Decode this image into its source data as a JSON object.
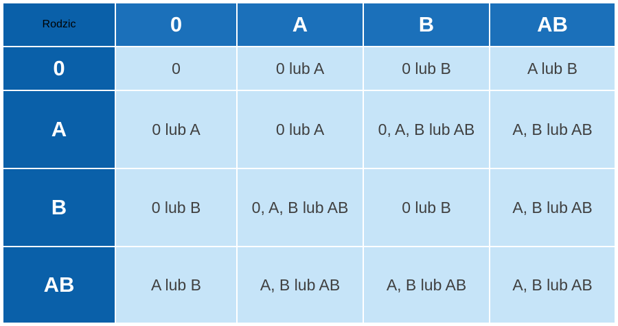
{
  "table": {
    "header": [
      "Rodzic",
      "0",
      "A",
      "B",
      "AB"
    ],
    "rows": [
      [
        "0",
        "0",
        "0 lub A",
        "0 lub B",
        "A lub B"
      ],
      [
        "A",
        "0 lub A",
        "0 lub A",
        "0, A, B lub AB",
        "A, B lub AB"
      ],
      [
        "B",
        "0 lub B",
        "0, A, B lub AB",
        "0 lub B",
        "A, B lub AB"
      ],
      [
        "AB",
        "A lub B",
        "A, B lub AB",
        "A, B lub AB",
        "A, B lub AB"
      ]
    ]
  }
}
